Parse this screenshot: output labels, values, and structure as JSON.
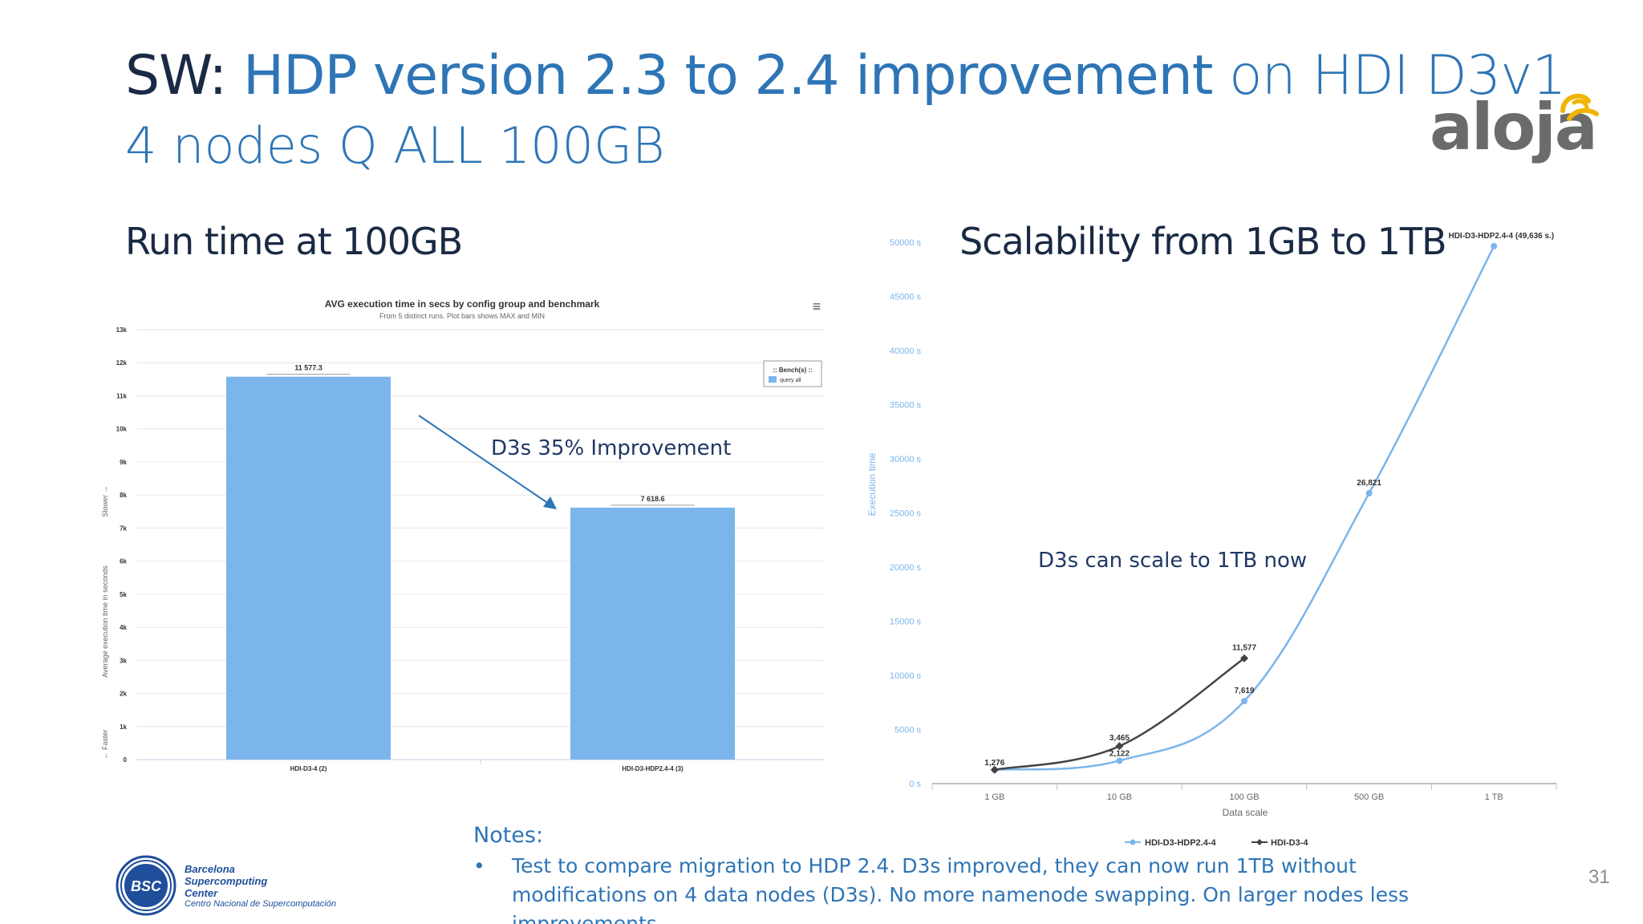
{
  "title": {
    "prefix": "SW:",
    "main": "HDP version 2.3 to 2.4 improvement",
    "suffix": "on HDI D3v1",
    "line2": "4 nodes Q ALL 100GB"
  },
  "logo": {
    "text": "aloja"
  },
  "left_subtitle": "Run time at 100GB",
  "right_subtitle": "Scalability from 1GB to 1TB",
  "annotations": {
    "improvement": "D3s 35% Improvement",
    "scale": "D3s can scale to 1TB now"
  },
  "notes": {
    "heading": "Notes:",
    "items": [
      "Test to compare migration to HDP 2.4. D3s improved, they can now run 1TB without modifications on 4 data nodes (D3s). No more namenode swapping. On larger nodes less improvements."
    ]
  },
  "page_number": "31",
  "bsc": {
    "name_line1": "Barcelona",
    "name_line2": "Supercomputing",
    "name_line3": "Center",
    "sub": "Centro Nacional de Supercomputación",
    "badge": "BSC"
  },
  "colors": {
    "accent": "#2e75b6",
    "bar": "#7cb5ec",
    "dark_series": "#434348"
  },
  "chart_data": [
    {
      "type": "bar",
      "title": "AVG execution time in secs by config group and benchmark",
      "subtitle": "From 5 distinct runs. Plot bars shows MAX and MIN",
      "categories": [
        "HDI-D3-4 (2)",
        "HDI-D3-HDP2.4-4 (3)"
      ],
      "values": [
        11577.3,
        7618.6
      ],
      "value_labels": [
        "11 577.3",
        "7 618.6"
      ],
      "ylabel": "Average execution time in seconds",
      "ylabel_top": "Slower →",
      "ylabel_bottom": "← Faster",
      "ylim": [
        0,
        13000
      ],
      "yticks": [
        0,
        1000,
        2000,
        3000,
        4000,
        5000,
        6000,
        7000,
        8000,
        9000,
        10000,
        11000,
        12000,
        13000
      ],
      "ytick_labels": [
        "0",
        "1k",
        "2k",
        "3k",
        "4k",
        "5k",
        "6k",
        "7k",
        "8k",
        "9k",
        "10k",
        "11k",
        "12k",
        "13k"
      ],
      "legend": {
        "title": ":: Bench(s) ::",
        "items": [
          "query all"
        ],
        "position": "top-right"
      },
      "menu_icon": "≡",
      "grid": true
    },
    {
      "type": "line",
      "categories": [
        "1 GB",
        "10 GB",
        "100 GB",
        "500 GB",
        "1 TB"
      ],
      "xlabel": "Data scale",
      "ylabel": "Execution time",
      "ylim": [
        0,
        50000
      ],
      "yticks": [
        0,
        5000,
        10000,
        15000,
        20000,
        25000,
        30000,
        35000,
        40000,
        45000,
        50000
      ],
      "ytick_labels": [
        "0 s",
        "5000 s",
        "10000 s",
        "15000 s",
        "20000 s",
        "25000 s",
        "30000 s",
        "35000 s",
        "40000 s",
        "45000 s",
        "50000 s"
      ],
      "series": [
        {
          "name": "HDI-D3-HDP2.4-4",
          "values": [
            1276,
            2122,
            7619,
            26821,
            49636
          ],
          "labels": [
            "",
            "2,122",
            "7,619",
            "26,821",
            "HDI-D3-HDP2.4-4 (49,636 s.)"
          ],
          "color": "#7cb5ec"
        },
        {
          "name": "HDI-D3-4",
          "values": [
            1276,
            3465,
            11577,
            null,
            null
          ],
          "labels": [
            "1,276",
            "3,465",
            "11,577",
            "",
            ""
          ],
          "color": "#434348"
        }
      ],
      "legend": "bottom"
    }
  ]
}
